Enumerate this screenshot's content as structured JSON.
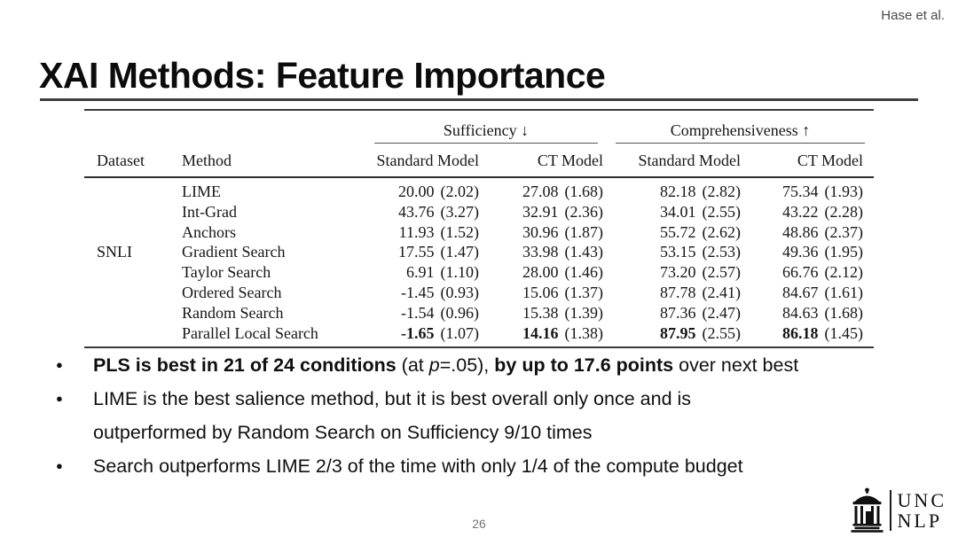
{
  "attribution": "Hase et al.",
  "title": "XAI Methods: Feature Importance",
  "colors": {
    "text": "#111111",
    "muted_gray": "#757575",
    "attribution_gray": "#4a4a4a",
    "rule_dark": "#3a3a3a",
    "background": "#ffffff"
  },
  "table": {
    "group_headers": [
      "Sufficiency ↓",
      "Comprehensiveness ↑"
    ],
    "col_headers": [
      "Dataset",
      "Method",
      "Standard Model",
      "CT Model",
      "Standard Model",
      "CT Model"
    ],
    "rows": [
      {
        "dataset": "",
        "method": "LIME",
        "cells": [
          {
            "v": "20.00",
            "s": "(2.02)"
          },
          {
            "v": "27.08",
            "s": "(1.68)"
          },
          {
            "v": "82.18",
            "s": "(2.82)"
          },
          {
            "v": "75.34",
            "s": "(1.93)"
          }
        ]
      },
      {
        "dataset": "",
        "method": "Int-Grad",
        "cells": [
          {
            "v": "43.76",
            "s": "(3.27)"
          },
          {
            "v": "32.91",
            "s": "(2.36)"
          },
          {
            "v": "34.01",
            "s": "(2.55)"
          },
          {
            "v": "43.22",
            "s": "(2.28)"
          }
        ]
      },
      {
        "dataset": "",
        "method": "Anchors",
        "cells": [
          {
            "v": "11.93",
            "s": "(1.52)"
          },
          {
            "v": "30.96",
            "s": "(1.87)"
          },
          {
            "v": "55.72",
            "s": "(2.62)"
          },
          {
            "v": "48.86",
            "s": "(2.37)"
          }
        ]
      },
      {
        "dataset": "SNLI",
        "method": "Gradient Search",
        "cells": [
          {
            "v": "17.55",
            "s": "(1.47)"
          },
          {
            "v": "33.98",
            "s": "(1.43)"
          },
          {
            "v": "53.15",
            "s": "(2.53)"
          },
          {
            "v": "49.36",
            "s": "(1.95)"
          }
        ]
      },
      {
        "dataset": "",
        "method": "Taylor Search",
        "cells": [
          {
            "v": "6.91",
            "s": "(1.10)"
          },
          {
            "v": "28.00",
            "s": "(1.46)"
          },
          {
            "v": "73.20",
            "s": "(2.57)"
          },
          {
            "v": "66.76",
            "s": "(2.12)"
          }
        ]
      },
      {
        "dataset": "",
        "method": "Ordered Search",
        "cells": [
          {
            "v": "-1.45",
            "s": "(0.93)"
          },
          {
            "v": "15.06",
            "s": "(1.37)"
          },
          {
            "v": "87.78",
            "s": "(2.41)"
          },
          {
            "v": "84.67",
            "s": "(1.61)"
          }
        ]
      },
      {
        "dataset": "",
        "method": "Random Search",
        "cells": [
          {
            "v": "-1.54",
            "s": "(0.96)"
          },
          {
            "v": "15.38",
            "s": "(1.39)"
          },
          {
            "v": "87.36",
            "s": "(2.47)"
          },
          {
            "v": "84.63",
            "s": "(1.68)"
          }
        ]
      },
      {
        "dataset": "",
        "method": "Parallel Local Search",
        "cells": [
          {
            "v": "-1.65",
            "s": "(1.07)",
            "b": true
          },
          {
            "v": "14.16",
            "s": "(1.38)",
            "b": true
          },
          {
            "v": "87.95",
            "s": "(2.55)",
            "b": true
          },
          {
            "v": "86.18",
            "s": "(1.45)",
            "b": true
          }
        ]
      }
    ]
  },
  "bullets": [
    {
      "lines": [
        [
          {
            "text": "PLS is best in 21 of 24 conditions",
            "bold": true
          },
          {
            "text": " (at "
          },
          {
            "text": "p",
            "italic": true
          },
          {
            "text": "=.05), "
          },
          {
            "text": "by up to 17.6 points",
            "bold": true
          },
          {
            "text": " over next best"
          }
        ]
      ]
    },
    {
      "lines": [
        [
          {
            "text": "LIME is the best salience method, but it is best overall only once and is"
          }
        ],
        [
          {
            "text": "outperformed by Random Search on Sufficiency 9/10 times"
          }
        ]
      ]
    },
    {
      "lines": [
        [
          {
            "text": "Search outperforms LIME 2/3 of the time with only 1/4 of the compute budget"
          }
        ]
      ]
    }
  ],
  "footer": {
    "page_number": "26",
    "logo_line1": "UNC",
    "logo_line2": "NLP",
    "logo_icon": "old-well-icon"
  }
}
